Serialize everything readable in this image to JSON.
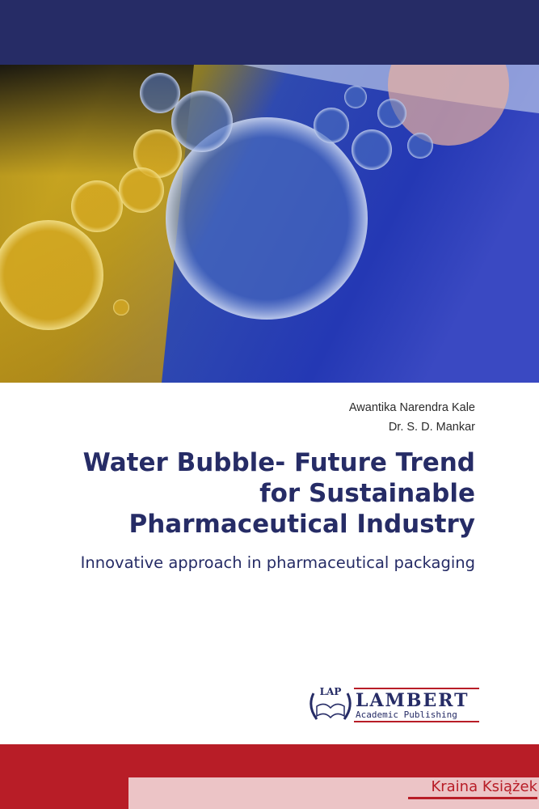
{
  "cover": {
    "authors": [
      "Awantika Narendra Kale",
      "Dr. S. D. Mankar"
    ],
    "title_lines": [
      "Water Bubble- Future Trend",
      "for Sustainable",
      "Pharmaceutical Industry"
    ],
    "subtitle": "Innovative approach in pharmaceutical packaging",
    "publisher": {
      "logo_text": "LAP",
      "name": "LAMBERT",
      "tagline": "Academic Publishing"
    },
    "watermark": "Kraina Książek"
  },
  "colors": {
    "navy": "#262c66",
    "red": "#b81d27",
    "pink": "#ecc4c6"
  }
}
